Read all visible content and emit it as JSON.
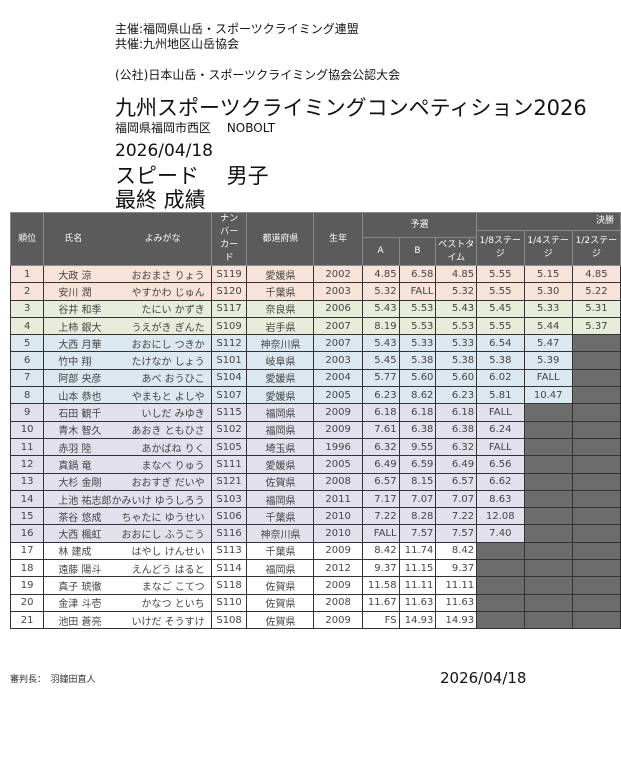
{
  "header": {
    "organizer": "主催:福岡県山岳・スポーツクライミング連盟",
    "co_organizer": "共催:九州地区山岳協会",
    "certification": "(公社)日本山岳・スポーツクライミング協会公認大会",
    "title": "九州スポーツクライミングコンペティション2026",
    "venue": "福岡県福岡市西区　 NOBOLT",
    "date": "2026/04/18",
    "event": "スピード　 男子",
    "result_type": "最終 成績"
  },
  "table": {
    "headers": {
      "rank": "順位",
      "name": "氏名",
      "reading": "よみがな",
      "bib": "ナンバーカード",
      "prefecture": "都道府県",
      "birth_year": "生年",
      "qualification": "予選",
      "a": "A",
      "b": "B",
      "best": "ベストタイム",
      "finals": "決勝",
      "r16": "1/8ステージ",
      "r8": "1/4ステージ",
      "r4": "1/2ステージ"
    },
    "row_colors": {
      "top2": "#f7e3d9",
      "top4": "#e8eddb",
      "top8": "#dce8ef",
      "top16": "#e2e0ec",
      "rest": "#ffffff",
      "eliminated": "#6c6c6c"
    },
    "rows": [
      [
        "1",
        "大政 涼",
        "おおまさ りょう",
        "S119",
        "愛媛県",
        "2002",
        "4.85",
        "6.58",
        "4.85",
        "5.55",
        "5.15",
        "4.85"
      ],
      [
        "2",
        "安川 潤",
        "やすかわ じゅん",
        "S120",
        "千葉県",
        "2003",
        "5.32",
        "FALL",
        "5.32",
        "5.55",
        "5.30",
        "5.22"
      ],
      [
        "3",
        "谷井 和季",
        "たにい かずき",
        "S117",
        "奈良県",
        "2006",
        "5.43",
        "5.53",
        "5.43",
        "5.45",
        "5.33",
        "5.31"
      ],
      [
        "4",
        "上柿 銀大",
        "うえがき ぎんた",
        "S109",
        "岩手県",
        "2007",
        "8.19",
        "5.53",
        "5.53",
        "5.55",
        "5.44",
        "5.37"
      ],
      [
        "5",
        "大西 月華",
        "おおにし つきか",
        "S112",
        "神奈川県",
        "2007",
        "5.43",
        "5.33",
        "5.33",
        "6.54",
        "5.47",
        null
      ],
      [
        "6",
        "竹中 翔",
        "たけなか しょう",
        "S101",
        "岐阜県",
        "2003",
        "5.45",
        "5.38",
        "5.38",
        "5.38",
        "5.39",
        null
      ],
      [
        "7",
        "阿部 央彦",
        "あべ おうひこ",
        "S104",
        "愛媛県",
        "2004",
        "5.77",
        "5.60",
        "5.60",
        "6.02",
        "FALL",
        null
      ],
      [
        "8",
        "山本 恭也",
        "やまもと よしや",
        "S107",
        "愛媛県",
        "2005",
        "6.23",
        "8.62",
        "6.23",
        "5.81",
        "10.47",
        null
      ],
      [
        "9",
        "石田 観千",
        "いしだ みゆき",
        "S115",
        "福岡県",
        "2009",
        "6.18",
        "6.18",
        "6.18",
        "FALL",
        null,
        null
      ],
      [
        "10",
        "青木 智久",
        "あおき ともひさ",
        "S102",
        "福岡県",
        "2009",
        "7.61",
        "6.38",
        "6.38",
        "6.24",
        null,
        null
      ],
      [
        "11",
        "赤羽 陸",
        "あかばね りく",
        "S105",
        "埼玉県",
        "1996",
        "6.32",
        "9.55",
        "6.32",
        "FALL",
        null,
        null
      ],
      [
        "12",
        "真鍋 竜",
        "まなべ りゅう",
        "S111",
        "愛媛県",
        "2005",
        "6.49",
        "6.59",
        "6.49",
        "6.56",
        null,
        null
      ],
      [
        "13",
        "大杉 金剛",
        "おおすぎ だいや",
        "S121",
        "佐賀県",
        "2008",
        "6.57",
        "8.15",
        "6.57",
        "6.62",
        null,
        null
      ],
      [
        "14",
        "上池 祐志郎",
        "かみいけ ゆうしろう",
        "S103",
        "福岡県",
        "2011",
        "7.17",
        "7.07",
        "7.07",
        "8.63",
        null,
        null
      ],
      [
        "15",
        "茶谷 悠成",
        "ちゃたに ゆうせい",
        "S106",
        "千葉県",
        "2010",
        "7.22",
        "8.28",
        "7.22",
        "12.08",
        null,
        null
      ],
      [
        "16",
        "大西 楓虹",
        "おおにし ふうこう",
        "S116",
        "神奈川県",
        "2010",
        "FALL",
        "7.57",
        "7.57",
        "7.40",
        null,
        null
      ],
      [
        "17",
        "林 建成",
        "はやし けんせい",
        "S113",
        "千葉県",
        "2009",
        "8.42",
        "11.74",
        "8.42",
        null,
        null,
        null
      ],
      [
        "18",
        "遠藤 陽斗",
        "えんどう はると",
        "S114",
        "福岡県",
        "2012",
        "9.37",
        "11.15",
        "9.37",
        null,
        null,
        null
      ],
      [
        "19",
        "真子 琥徹",
        "まなご こてつ",
        "S118",
        "佐賀県",
        "2009",
        "11.58",
        "11.11",
        "11.11",
        null,
        null,
        null
      ],
      [
        "20",
        "金津 斗壱",
        "かなつ といち",
        "S110",
        "佐賀県",
        "2008",
        "11.67",
        "11.63",
        "11.63",
        null,
        null,
        null
      ],
      [
        "21",
        "池田 蒼亮",
        "いけだ そうすけ",
        "S108",
        "佐賀県",
        "2009",
        "FS",
        "14.93",
        "14.93",
        null,
        null,
        null
      ]
    ]
  },
  "footer": {
    "judge": "審判長：　羽鐘田直人",
    "date": "2026/04/18"
  }
}
